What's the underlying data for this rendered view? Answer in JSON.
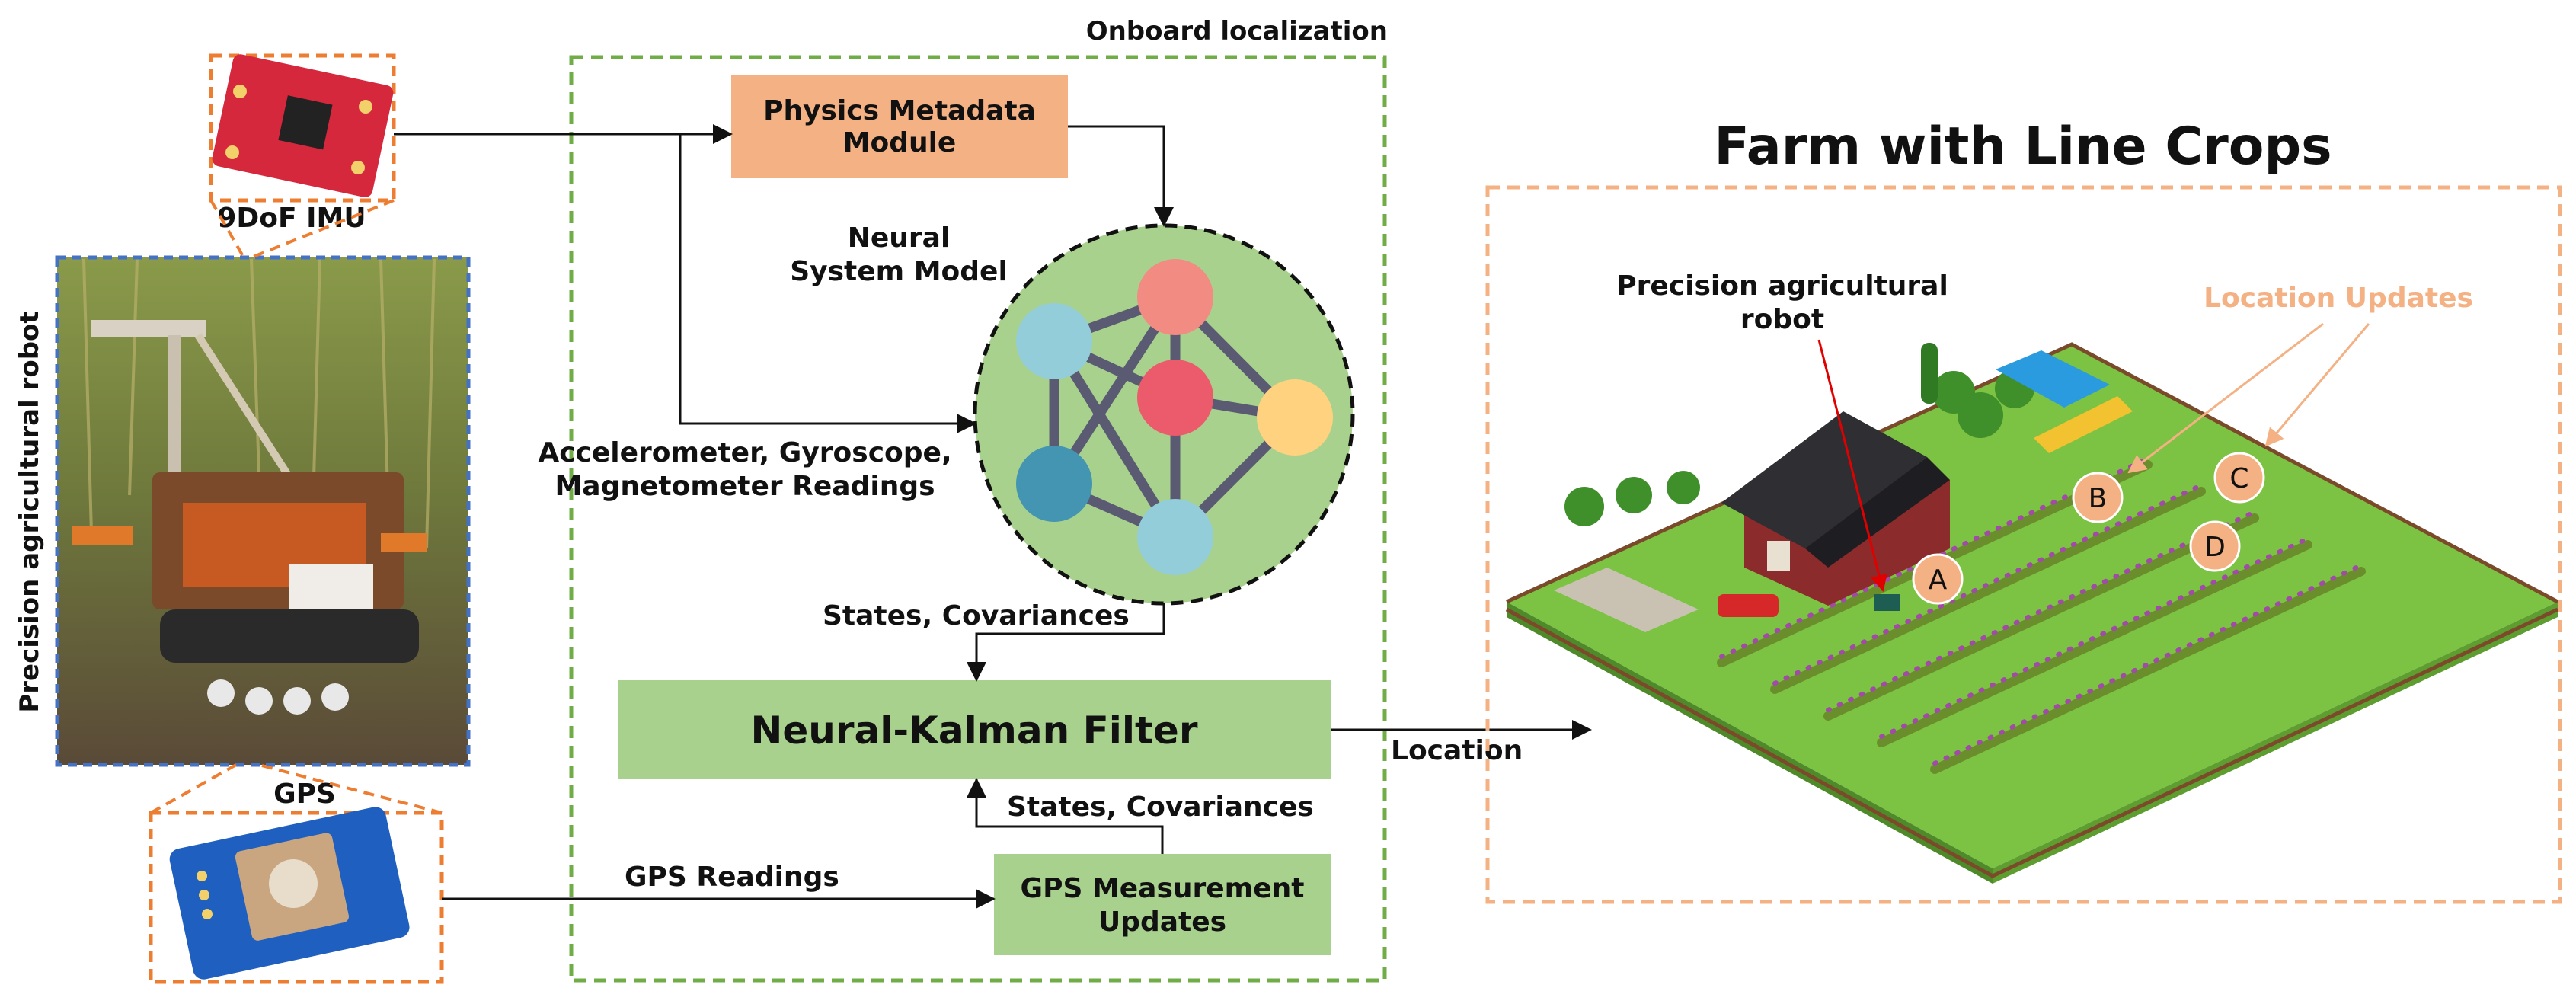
{
  "labels": {
    "onboard_localization": "Onboard localization",
    "imu": "9DoF IMU",
    "gps": "GPS",
    "robot_side_label": "Precision agricultural robot",
    "physics_module_line1": "Physics Metadata",
    "physics_module_line2": "Module",
    "neural_model_line1": "Neural",
    "neural_model_line2": "System Model",
    "sensor_readings_line1": "Accelerometer, Gyroscope,",
    "sensor_readings_line2": "Magnetometer Readings",
    "states_cov_top": "States, Covariances",
    "nkf": "Neural-Kalman Filter",
    "states_cov_bottom": "States, Covariances",
    "gps_readings": "GPS Readings",
    "gps_update_line1": "GPS Measurement",
    "gps_update_line2": "Updates",
    "location": "Location",
    "farm_title": "Farm with Line Crops",
    "robot_label_line1": "Precision agricultural",
    "robot_label_line2": "robot",
    "location_updates": "Location Updates",
    "markers": [
      "A",
      "B",
      "C",
      "D"
    ]
  },
  "colors": {
    "physics_module": "#F4B183",
    "green_box": "#A9D18E",
    "onboard_border": "#70AD47",
    "orange_border": "#ED7D31",
    "farm_border": "#F4B183",
    "photo_border": "#4472C4",
    "neural_circle": "#A9D18E",
    "location_updates_text": "#F4B183"
  },
  "icons": [
    "imu-board-icon",
    "gps-board-icon",
    "robot-photo",
    "neural-network-icon",
    "farm-illustration"
  ]
}
